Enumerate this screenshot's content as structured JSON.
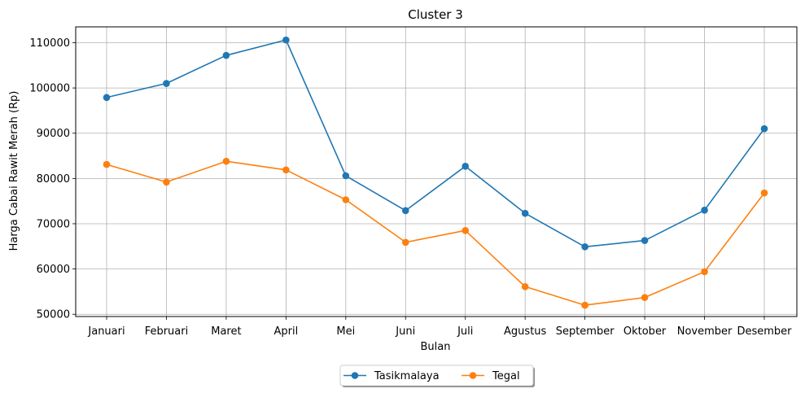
{
  "chart_data": {
    "type": "line",
    "title": "Cluster 3",
    "xlabel": "Bulan",
    "ylabel": "Harga Cabai Rawit Merah (Rp)",
    "categories": [
      "Januari",
      "Februari",
      "Maret",
      "April",
      "Mei",
      "Juni",
      "Juli",
      "Agustus",
      "September",
      "Oktober",
      "November",
      "Desember"
    ],
    "y_ticks": [
      "50000",
      "60000",
      "70000",
      "80000",
      "90000",
      "100000",
      "110000"
    ],
    "ylim": [
      49500,
      113500
    ],
    "grid": true,
    "legend_position": "bottom-center",
    "series": [
      {
        "name": "Tasikmalaya",
        "color": "#1f77b4",
        "values": [
          97900,
          101000,
          107200,
          110600,
          80600,
          72900,
          82700,
          72300,
          64900,
          66300,
          73000,
          91000
        ]
      },
      {
        "name": "Tegal",
        "color": "#ff7f0e",
        "values": [
          83100,
          79200,
          83800,
          81900,
          75300,
          65900,
          68500,
          56100,
          52000,
          53700,
          59400,
          76800
        ]
      }
    ]
  }
}
